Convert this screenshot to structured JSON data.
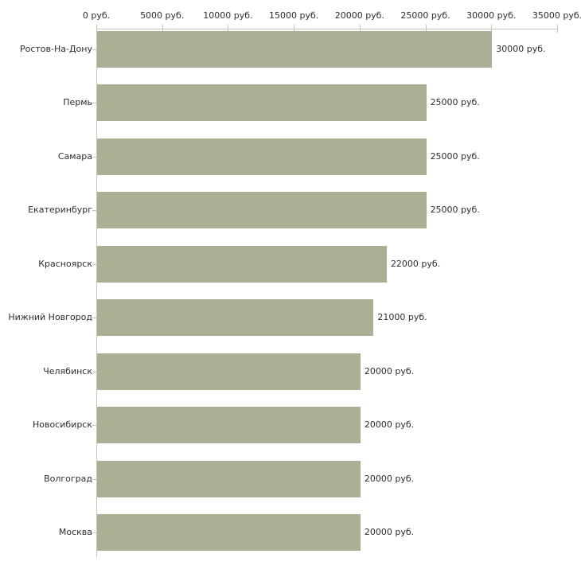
{
  "chart": {
    "bar_color": "#aab093",
    "axis_line_color": "#c4c4c4",
    "tick_mark_color": "#c6c6a0",
    "category_tick_color": "#c6c6a0",
    "text_color": "#2d2d2d",
    "background_color": "#ffffff"
  },
  "chart_data": {
    "type": "bar",
    "orientation": "horizontal",
    "title": "",
    "xlabel": "",
    "ylabel": "",
    "unit": "руб.",
    "categories": [
      "Ростов-На-Дону",
      "Пермь",
      "Самара",
      "Екатеринбург",
      "Красноярск",
      "Нижний Новгород",
      "Челябинск",
      "Новосибирск",
      "Волгоград",
      "Москва"
    ],
    "values": [
      30000,
      25000,
      25000,
      25000,
      22000,
      21000,
      20000,
      20000,
      20000,
      20000
    ],
    "bar_value_labels": [
      "30000 руб.",
      "25000 руб.",
      "25000 руб.",
      "25000 руб.",
      "22000 руб.",
      "21000 руб.",
      "20000 руб.",
      "20000 руб.",
      "20000 руб.",
      "20000 руб."
    ],
    "x_tick_values": [
      0,
      5000,
      10000,
      15000,
      20000,
      25000,
      30000,
      35000
    ],
    "x_tick_labels": [
      "0 руб.",
      "5000 руб.",
      "10000 руб.",
      "15000 руб.",
      "20000 руб.",
      "25000 руб.",
      "30000 руб.",
      "35000 руб."
    ],
    "xlim": [
      0,
      35000
    ],
    "grid": false,
    "legend": false,
    "x_axis_position": "top"
  }
}
